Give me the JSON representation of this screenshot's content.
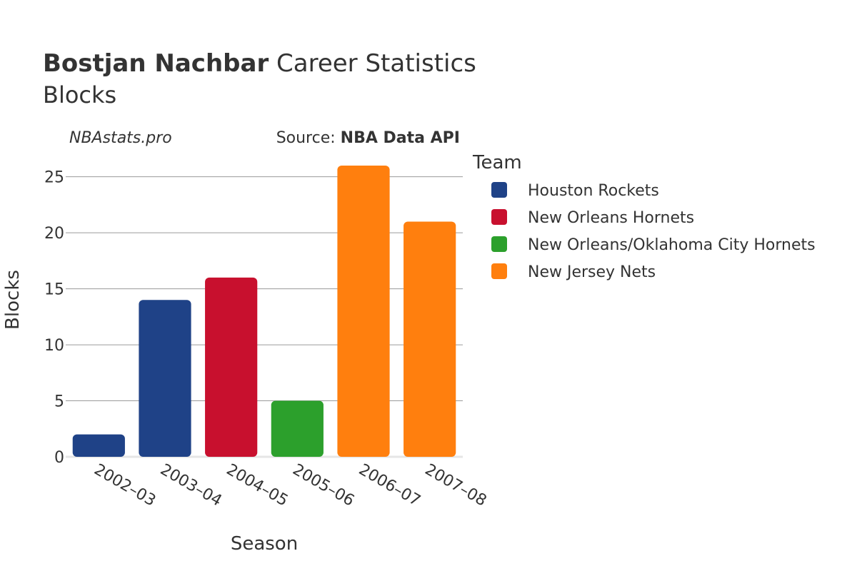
{
  "header": {
    "title_bold": "Bostjan Nachbar",
    "title_rest": " Career Statistics",
    "subtitle": "Blocks"
  },
  "watermark": "NBAstats.pro",
  "source": {
    "prefix": "Source: ",
    "name": "NBA Data API"
  },
  "legend": {
    "title": "Team",
    "items": [
      {
        "label": "Houston Rockets",
        "color": "#1f4287"
      },
      {
        "label": "New Orleans Hornets",
        "color": "#c8102e"
      },
      {
        "label": "New Orleans/Oklahoma City Hornets",
        "color": "#2ca02c"
      },
      {
        "label": "New Jersey Nets",
        "color": "#ff7f0e"
      }
    ]
  },
  "chart_data": {
    "type": "bar",
    "title": "Bostjan Nachbar Career Statistics",
    "subtitle": "Blocks",
    "xlabel": "Season",
    "ylabel": "Blocks",
    "categories": [
      "2002–03",
      "2003–04",
      "2004–05",
      "2005–06",
      "2006–07",
      "2007–08"
    ],
    "values": [
      2,
      14,
      16,
      5,
      26,
      21
    ],
    "teams": [
      "Houston Rockets",
      "Houston Rockets",
      "New Orleans Hornets",
      "New Orleans/Oklahoma City Hornets",
      "New Jersey Nets",
      "New Jersey Nets"
    ],
    "ylim": [
      0,
      27.4
    ],
    "yticks": [
      0,
      5,
      10,
      15,
      20,
      25
    ],
    "grid": true,
    "legend_position": "right"
  }
}
